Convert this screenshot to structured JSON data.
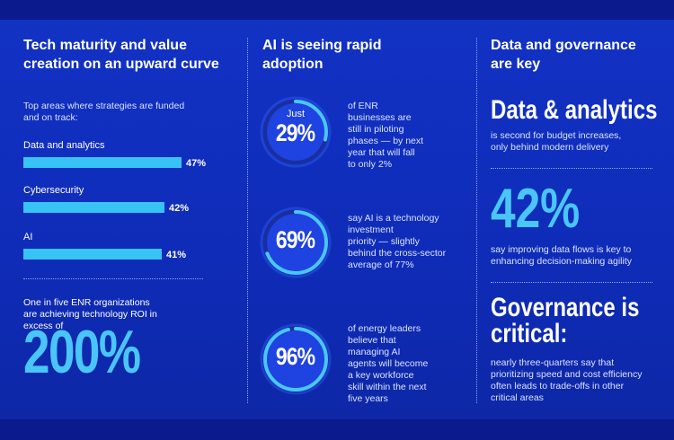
{
  "col1": {
    "title_line1": "Tech maturity and value",
    "title_line2": "creation on an upward curve",
    "intro_line1": "Top areas where strategies are funded",
    "intro_line2": "and on track:",
    "bars": [
      {
        "label": "Data and analytics",
        "value": "47%",
        "pct": 47
      },
      {
        "label": "Cybersecurity",
        "value": "42%",
        "pct": 42
      },
      {
        "label": "AI",
        "value": "41%",
        "pct": 41
      }
    ],
    "roi_line1": "One in five ENR organizations",
    "roi_line2": "are achieving technology ROI in",
    "roi_line3": "excess of",
    "roi_big": "200%"
  },
  "col2": {
    "title_line1": "AI is seeing rapid",
    "title_line2": "adoption",
    "stats": [
      {
        "pre": "Just",
        "pct": "29%",
        "fill": 0.29,
        "lines": [
          "of ENR",
          "businesses are",
          "still in piloting",
          "phases — by next",
          "year that will fall",
          "to only 2%"
        ]
      },
      {
        "pre": "",
        "pct": "69%",
        "fill": 0.69,
        "lines": [
          "say AI is a technology",
          "investment",
          "priority — slightly",
          "behind the cross-sector",
          "average of 77%"
        ]
      },
      {
        "pre": "",
        "pct": "96%",
        "fill": 0.96,
        "lines": [
          "of energy leaders",
          "believe that",
          "managing AI",
          "agents will become",
          "a key workforce",
          "skill within the next",
          "five years"
        ]
      }
    ]
  },
  "col3": {
    "title_line1": "Data and governance",
    "title_line2": "are key",
    "headline1": "Data & analytics",
    "sub1_line1": "is second for budget increases,",
    "sub1_line2": "only behind modern delivery",
    "big42": "42%",
    "sub2_line1": "say improving data flows is key to",
    "sub2_line2": "enhancing decision-making agility",
    "headline3_line1": "Governance is",
    "headline3_line2": "critical:",
    "sub3_lines": [
      "nearly three-quarters say that",
      "prioritizing speed and cost efficiency",
      "often leads to trade-offs in other",
      "critical areas"
    ]
  },
  "colors": {
    "background": "#1232c4",
    "accent": "#49c6f7",
    "bar": "#38c3f5",
    "ring_inner": "#1f43e0"
  }
}
